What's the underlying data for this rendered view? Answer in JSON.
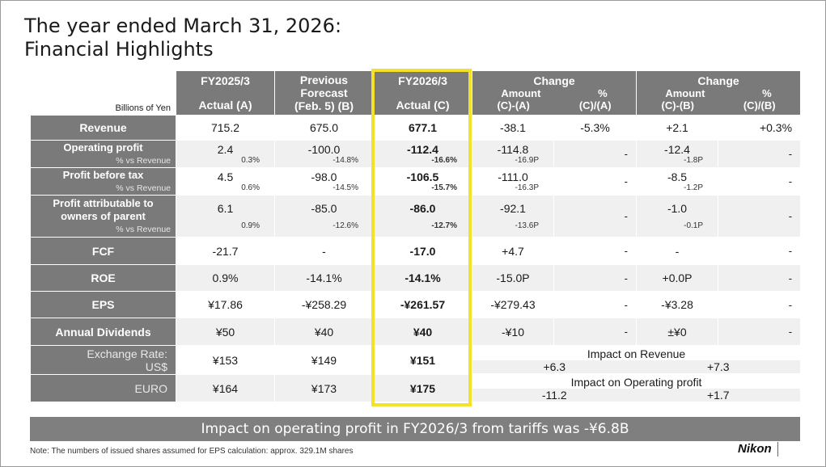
{
  "title": {
    "line1": "The year ended March 31, 2026:",
    "line2": "Financial Highlights"
  },
  "header": {
    "units": "Billions of Yen",
    "col_a_top": "FY2025/3",
    "col_a_bottom": "Actual (A)",
    "col_b_top": "Previous",
    "col_b_mid": "Forecast",
    "col_b_bottom": "(Feb. 5) (B)",
    "col_c_top": "FY2026/3",
    "col_c_bottom": "Actual (C)",
    "change1_title": "Change",
    "change1_amount": "Amount",
    "change1_amount_formula": "(C)-(A)",
    "change1_pct": "%",
    "change1_pct_formula": "(C)/(A)",
    "change2_title": "Change",
    "change2_amount": "Amount",
    "change2_amount_formula": "(C)-(B)",
    "change2_pct": "%",
    "change2_pct_formula": "(C)/(B)"
  },
  "rows": {
    "revenue": {
      "label": "Revenue",
      "a": "715.2",
      "b": "675.0",
      "c": "677.1",
      "ca": "-38.1",
      "ca_pct": "-5.3%",
      "cb": "+2.1",
      "cb_pct": "+0.3%"
    },
    "op": {
      "label": "Operating profit",
      "pvr": "% vs Revenue",
      "a": "2.4",
      "a_pct": "0.3%",
      "b": "-100.0",
      "b_pct": "-14.8%",
      "c": "-112.4",
      "c_pct": "-16.6%",
      "ca": "-114.8",
      "ca_p": "-16.9P",
      "ca_pct": "-",
      "cb": "-12.4",
      "cb_p": "-1.8P",
      "cb_pct": "-"
    },
    "pbt": {
      "label": "Profit before tax",
      "pvr": "% vs Revenue",
      "a": "4.5",
      "a_pct": "0.6%",
      "b": "-98.0",
      "b_pct": "-14.5%",
      "c": "-106.5",
      "c_pct": "-15.7%",
      "ca": "-111.0",
      "ca_p": "-16.3P",
      "ca_pct": "-",
      "cb": "-8.5",
      "cb_p": "-1.2P",
      "cb_pct": "-"
    },
    "pao": {
      "label1": "Profit attributable to",
      "label2": "owners of parent",
      "pvr": "% vs Revenue",
      "a": "6.1",
      "a_pct": "0.9%",
      "b": "-85.0",
      "b_pct": "-12.6%",
      "c": "-86.0",
      "c_pct": "-12.7%",
      "ca": "-92.1",
      "ca_p": "-13.6P",
      "ca_pct": "-",
      "cb": "-1.0",
      "cb_p": "-0.1P",
      "cb_pct": "-"
    },
    "fcf": {
      "label": "FCF",
      "a": "-21.7",
      "b": "-",
      "c": "-17.0",
      "ca": "+4.7",
      "ca_pct": "-",
      "cb": "-",
      "cb_pct": "-"
    },
    "roe": {
      "label": "ROE",
      "a": "0.9%",
      "b": "-14.1%",
      "c": "-14.1%",
      "ca": "-15.0P",
      "ca_pct": "-",
      "cb": "+0.0P",
      "cb_pct": "-"
    },
    "eps": {
      "label": "EPS",
      "a": "¥17.86",
      "b": "-¥258.29",
      "c": "-¥261.57",
      "ca": "-¥279.43",
      "ca_pct": "-",
      "cb": "-¥3.28",
      "cb_pct": "-"
    },
    "div": {
      "label": "Annual Dividends",
      "a": "¥50",
      "b": "¥40",
      "c": "¥40",
      "ca": "-¥10",
      "ca_pct": "-",
      "cb": "±¥0",
      "cb_pct": "-"
    }
  },
  "fx": {
    "label1": "Exchange Rate:",
    "usd_label": "US$",
    "euro_label": "EURO",
    "usd": {
      "a": "¥153",
      "b": "¥149",
      "c": "¥151"
    },
    "euro": {
      "a": "¥164",
      "b": "¥173",
      "c": "¥175"
    },
    "impact_revenue_label": "Impact on Revenue",
    "impact_revenue_a": "+6.3",
    "impact_revenue_b": "+7.3",
    "impact_op_label": "Impact on Operating profit",
    "impact_op_a": "-11.2",
    "impact_op_b": "+1.7"
  },
  "banner": "Impact on operating profit in FY2026/3 from tariffs was -¥6.8B",
  "note": "Note: The numbers of issued shares assumed for EPS calculation: approx. 329.1M shares",
  "logo": "Nikon",
  "colors": {
    "header_gray": "#7a7a7a",
    "highlight_yellow": "#f6e12a",
    "banner_gray": "#7f7f7f"
  }
}
